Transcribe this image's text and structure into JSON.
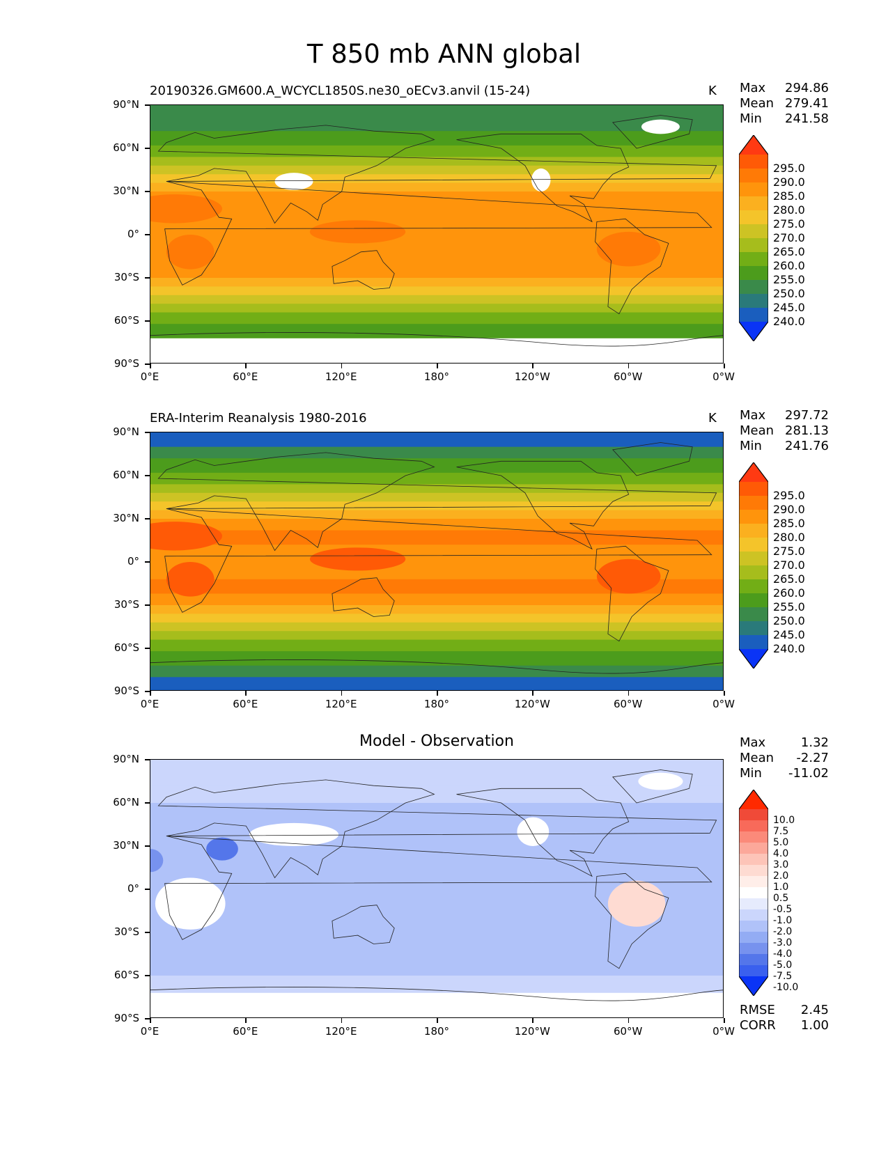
{
  "figure": {
    "title": "T 850 mb ANN global"
  },
  "axes": {
    "y_ticks": [
      "90°N",
      "60°N",
      "30°N",
      "0°",
      "30°S",
      "60°S",
      "90°S"
    ],
    "x_ticks": [
      "0°E",
      "60°E",
      "120°E",
      "180°",
      "120°W",
      "60°W",
      "0°W"
    ]
  },
  "panels": [
    {
      "subtitle": "20190326.GM600.A_WCYCL1850S.ne30_oECv3.anvil (15-24)",
      "units": "K",
      "stats": [
        {
          "label": "Max",
          "value": "294.86"
        },
        {
          "label": "Mean",
          "value": "279.41"
        },
        {
          "label": "Min",
          "value": "241.58"
        }
      ],
      "colorbar_levels": [
        "295.0",
        "290.0",
        "285.0",
        "280.0",
        "275.0",
        "270.0",
        "265.0",
        "260.0",
        "255.0",
        "250.0",
        "245.0",
        "240.0"
      ],
      "colorbar_colors": [
        "#ff3a12",
        "#ff5a06",
        "#ff7a06",
        "#ff940c",
        "#fbb01f",
        "#f4c42a",
        "#cdc324",
        "#a6bd1c",
        "#72ae16",
        "#4c9c1c",
        "#3a8a4a",
        "#2a7a7a",
        "#1a5ebe",
        "#0a34f6"
      ]
    },
    {
      "subtitle": "ERA-Interim Reanalysis 1980-2016",
      "units": "K",
      "stats": [
        {
          "label": "Max",
          "value": "297.72"
        },
        {
          "label": "Mean",
          "value": "281.13"
        },
        {
          "label": "Min",
          "value": "241.76"
        }
      ],
      "colorbar_levels": [
        "295.0",
        "290.0",
        "285.0",
        "280.0",
        "275.0",
        "270.0",
        "265.0",
        "260.0",
        "255.0",
        "250.0",
        "245.0",
        "240.0"
      ],
      "colorbar_colors": [
        "#ff3a12",
        "#ff5a06",
        "#ff7a06",
        "#ff940c",
        "#fbb01f",
        "#f4c42a",
        "#cdc324",
        "#a6bd1c",
        "#72ae16",
        "#4c9c1c",
        "#3a8a4a",
        "#2a7a7a",
        "#1a5ebe",
        "#0a34f6"
      ]
    },
    {
      "subtitle": "Model - Observation",
      "units": "",
      "stats": [
        {
          "label": "Max",
          "value": "1.32"
        },
        {
          "label": "Mean",
          "value": "-2.27"
        },
        {
          "label": "Min",
          "value": "-11.02"
        }
      ],
      "colorbar_levels": [
        "10.0",
        "7.5",
        "5.0",
        "4.0",
        "3.0",
        "2.0",
        "1.0",
        "0.5",
        "-0.5",
        "-1.0",
        "-2.0",
        "-3.0",
        "-4.0",
        "-5.0",
        "-7.5",
        "-10.0"
      ],
      "colorbar_colors": [
        "#ff2a00",
        "#f04a38",
        "#f86a5a",
        "#fb8a7a",
        "#fca89a",
        "#fdc4b8",
        "#fedbd2",
        "#ffeee9",
        "#ffffff",
        "#e6ebfd",
        "#cbd6fc",
        "#b0c2f9",
        "#93acf4",
        "#7792ee",
        "#5476ea",
        "#3a60ee",
        "#0a34f6"
      ],
      "rmse": {
        "label": "RMSE",
        "value": "2.45"
      },
      "corr": {
        "label": "CORR",
        "value": "1.00"
      }
    }
  ]
}
